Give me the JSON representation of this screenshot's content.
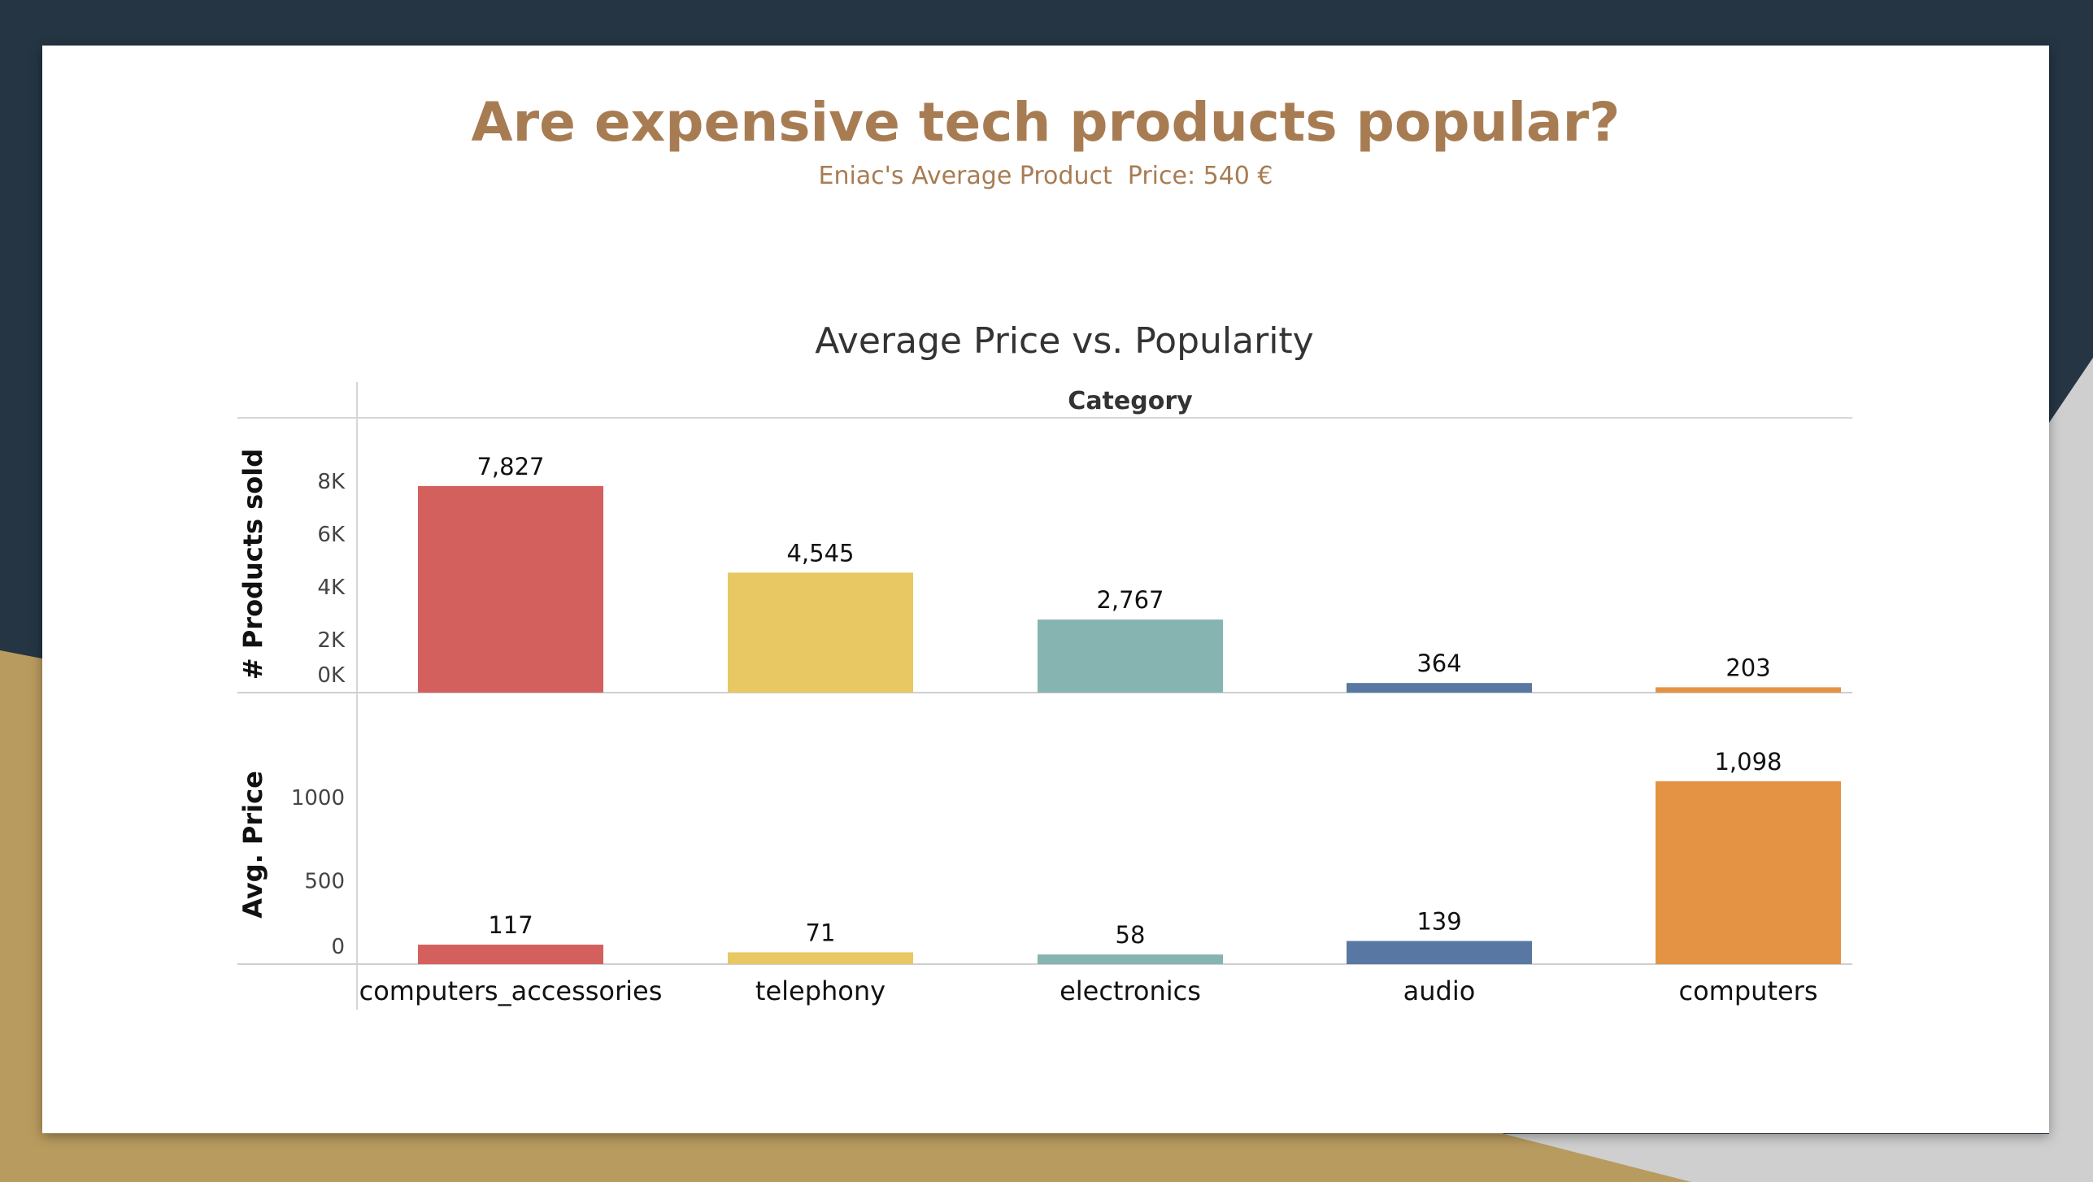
{
  "slide": {
    "title": "Are expensive tech products popular?",
    "subtitle": "Eniac's Average Product  Price: 540 €"
  },
  "colors": {
    "background": "#253544",
    "accent_gold": "#B89B5E",
    "accent_gray": "#CFCFCF",
    "title": "#A87C52"
  },
  "chart_data": {
    "type": "bar",
    "title": "Average Price vs. Popularity",
    "column_header": "Category",
    "categories": [
      "computers_accessories",
      "telephony",
      "electronics",
      "audio",
      "computers"
    ],
    "colors": [
      "#D4605E",
      "#E7C862",
      "#86B4B1",
      "#5878A3",
      "#E49344"
    ],
    "panels": [
      {
        "ylabel": "# Products sold",
        "ylim": [
          0,
          8500
        ],
        "ticks": [
          {
            "value": 0,
            "label": "0K"
          },
          {
            "value": 2000,
            "label": "2K"
          },
          {
            "value": 4000,
            "label": "4K"
          },
          {
            "value": 6000,
            "label": "6K"
          },
          {
            "value": 8000,
            "label": "8K"
          }
        ],
        "values": [
          7827,
          4545,
          2767,
          364,
          203
        ],
        "value_labels": [
          "7,827",
          "4,545",
          "2,767",
          "364",
          "203"
        ]
      },
      {
        "ylabel": "Avg. Price",
        "ylim": [
          0,
          1240
        ],
        "ticks": [
          {
            "value": 0,
            "label": "0"
          },
          {
            "value": 500,
            "label": "500"
          },
          {
            "value": 1000,
            "label": "1000"
          }
        ],
        "values": [
          117,
          71,
          58,
          139,
          1098
        ],
        "value_labels": [
          "117",
          "71",
          "58",
          "139",
          "1,098"
        ]
      }
    ],
    "grid": false,
    "legend": "none"
  }
}
